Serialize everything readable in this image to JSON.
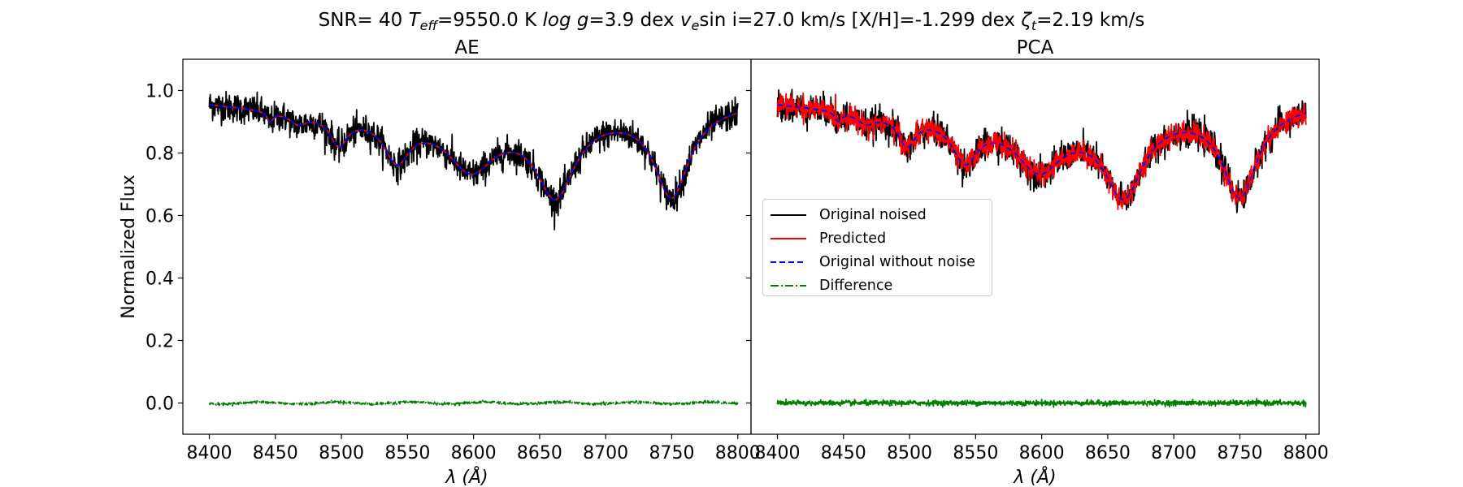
{
  "figure": {
    "suptitle_parts": {
      "snr": "SNR= 40 ",
      "teff_sym": "T",
      "teff_sub": "eff",
      "teff_val": "=9550.0 K ",
      "logg_sym": "log g",
      "logg_val": "=3.9 dex ",
      "vsini_sym": "v",
      "vsini_sub": "e",
      "vsini_mid": "sin i",
      "vsini_val": "=27.0 km/s [X/H]=-1.299 dex ",
      "zeta_sym": "ζ",
      "zeta_sub": "t",
      "zeta_val": "=2.19 km/s"
    }
  },
  "chart_data": [
    {
      "type": "line",
      "title": "AE",
      "xlabel": "λ (Å)",
      "ylabel": "Normalized Flux",
      "xlim": [
        8380,
        8810
      ],
      "ylim": [
        -0.1,
        1.1
      ],
      "xticks": [
        8400,
        8450,
        8500,
        8550,
        8600,
        8650,
        8700,
        8750,
        8800
      ],
      "xtick_labels": [
        "8400",
        "8450",
        "8500",
        "8550",
        "8600",
        "8650",
        "8700",
        "8750",
        "8800"
      ],
      "yticks": [
        0.0,
        0.2,
        0.4,
        0.6,
        0.8,
        1.0
      ],
      "ytick_labels": [
        "0.0",
        "0.2",
        "0.4",
        "0.6",
        "0.8",
        "1.0"
      ],
      "continuum": {
        "x": [
          8400,
          8470,
          8530,
          8570,
          8630,
          8705,
          8800
        ],
        "y": [
          0.96,
          0.935,
          0.925,
          0.92,
          0.92,
          0.94,
          0.96
        ]
      },
      "absorption_lines": [
        {
          "center": 8446,
          "depth": 0.03,
          "width": 3
        },
        {
          "center": 8467,
          "depth": 0.03,
          "width": 8
        },
        {
          "center": 8498,
          "depth": 0.09,
          "width": 8
        },
        {
          "center": 8542,
          "depth": 0.13,
          "width": 12
        },
        {
          "center": 8598,
          "depth": 0.16,
          "width": 22
        },
        {
          "center": 8662,
          "depth": 0.25,
          "width": 18
        },
        {
          "center": 8750,
          "depth": 0.28,
          "width": 16
        }
      ],
      "noise_sigma": 0.024,
      "predicted_noise_sigma": 0,
      "difference_sigma": 0.002,
      "series": [
        {
          "name": "Original noised",
          "color": "#000000",
          "style": "solid"
        },
        {
          "name": "Predicted",
          "color": "#ff0000",
          "style": "solid"
        },
        {
          "name": "Original without noise",
          "color": "#0000ff",
          "style": "dashed"
        },
        {
          "name": "Difference",
          "color": "#008000",
          "style": "dashdot"
        }
      ]
    },
    {
      "type": "line",
      "title": "PCA",
      "xlabel": "λ (Å)",
      "ylabel": "",
      "xlim": [
        8380,
        8810
      ],
      "ylim": [
        -0.1,
        1.1
      ],
      "xticks": [
        8400,
        8450,
        8500,
        8550,
        8600,
        8650,
        8700,
        8750,
        8800
      ],
      "xtick_labels": [
        "8400",
        "8450",
        "8500",
        "8550",
        "8600",
        "8650",
        "8700",
        "8750",
        "8800"
      ],
      "yticks": [
        0.0,
        0.2,
        0.4,
        0.6,
        0.8,
        1.0
      ],
      "ytick_labels": [],
      "continuum": {
        "x": [
          8400,
          8470,
          8530,
          8570,
          8630,
          8705,
          8800
        ],
        "y": [
          0.96,
          0.935,
          0.925,
          0.92,
          0.92,
          0.94,
          0.96
        ]
      },
      "absorption_lines": [
        {
          "center": 8446,
          "depth": 0.03,
          "width": 3
        },
        {
          "center": 8467,
          "depth": 0.03,
          "width": 8
        },
        {
          "center": 8498,
          "depth": 0.09,
          "width": 8
        },
        {
          "center": 8542,
          "depth": 0.13,
          "width": 12
        },
        {
          "center": 8598,
          "depth": 0.16,
          "width": 22
        },
        {
          "center": 8662,
          "depth": 0.25,
          "width": 18
        },
        {
          "center": 8750,
          "depth": 0.28,
          "width": 16
        }
      ],
      "noise_sigma": 0.024,
      "predicted_noise_sigma": 0.018,
      "difference_sigma": 0.004,
      "series": [
        {
          "name": "Original noised",
          "color": "#000000",
          "style": "solid"
        },
        {
          "name": "Predicted",
          "color": "#ff0000",
          "style": "solid"
        },
        {
          "name": "Original without noise",
          "color": "#0000ff",
          "style": "dashed"
        },
        {
          "name": "Difference",
          "color": "#008000",
          "style": "dashdot"
        }
      ]
    }
  ],
  "legend": {
    "location": "center-left of right panel",
    "entries": [
      {
        "label": "Original noised",
        "color": "#000000",
        "style": "solid"
      },
      {
        "label": "Predicted",
        "color": "#ff0000",
        "style": "solid"
      },
      {
        "label": "Original without noise",
        "color": "#0000ff",
        "style": "dashed"
      },
      {
        "label": "Difference",
        "color": "#008000",
        "style": "dashdot"
      }
    ]
  }
}
